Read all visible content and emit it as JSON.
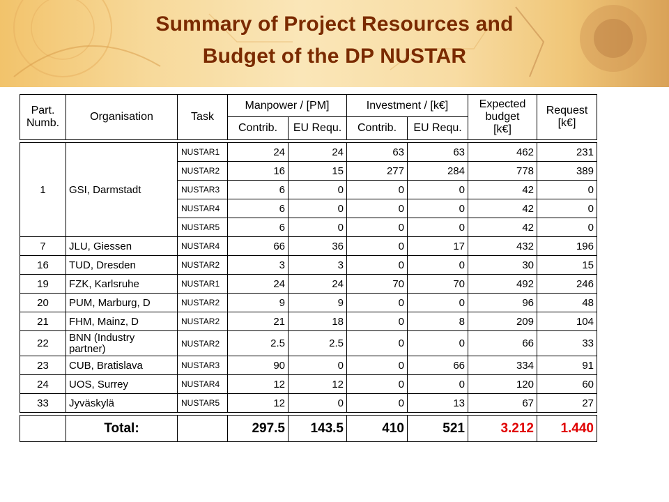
{
  "title": {
    "line1": "Summary of Project Resources and",
    "line2": "Budget of the DP NUSTAR"
  },
  "colors": {
    "title": "#7a2a00",
    "total_highlight": "#e00000",
    "banner": "#f7d99a"
  },
  "table": {
    "headers": {
      "part_numb": "Part.\nNumb.",
      "organisation": "Organisation",
      "task": "Task",
      "manpower": "Manpower / [PM]",
      "investment": "Investment / [k€]",
      "expected_budget": "Expected\nbudget\n[k€]",
      "request": "Request\n[k€]",
      "contrib": "Contrib.",
      "eu_requ": "EU Requ."
    },
    "gsi": {
      "part": "1",
      "org": "GSI, Darmstadt",
      "rows": [
        {
          "task": "NUSTAR1",
          "mp_contrib": "24",
          "mp_eu": "24",
          "inv_contrib": "63",
          "inv_eu": "63",
          "budget": "462",
          "request": "231"
        },
        {
          "task": "NUSTAR2",
          "mp_contrib": "16",
          "mp_eu": "15",
          "inv_contrib": "277",
          "inv_eu": "284",
          "budget": "778",
          "request": "389"
        },
        {
          "task": "NUSTAR3",
          "mp_contrib": "6",
          "mp_eu": "0",
          "inv_contrib": "0",
          "inv_eu": "0",
          "budget": "42",
          "request": "0"
        },
        {
          "task": "NUSTAR4",
          "mp_contrib": "6",
          "mp_eu": "0",
          "inv_contrib": "0",
          "inv_eu": "0",
          "budget": "42",
          "request": "0"
        },
        {
          "task": "NUSTAR5",
          "mp_contrib": "6",
          "mp_eu": "0",
          "inv_contrib": "0",
          "inv_eu": "0",
          "budget": "42",
          "request": "0"
        }
      ]
    },
    "rows": [
      {
        "part": "7",
        "org": "JLU, Giessen",
        "task": "NUSTAR4",
        "mp_contrib": "66",
        "mp_eu": "36",
        "inv_contrib": "0",
        "inv_eu": "17",
        "budget": "432",
        "request": "196"
      },
      {
        "part": "16",
        "org": "TUD, Dresden",
        "task": "NUSTAR2",
        "mp_contrib": "3",
        "mp_eu": "3",
        "inv_contrib": "0",
        "inv_eu": "0",
        "budget": "30",
        "request": "15"
      },
      {
        "part": "19",
        "org": "FZK, Karlsruhe",
        "task": "NUSTAR1",
        "mp_contrib": "24",
        "mp_eu": "24",
        "inv_contrib": "70",
        "inv_eu": "70",
        "budget": "492",
        "request": "246"
      },
      {
        "part": "20",
        "org": "PUM, Marburg, D",
        "task": "NUSTAR2",
        "mp_contrib": "9",
        "mp_eu": "9",
        "inv_contrib": "0",
        "inv_eu": "0",
        "budget": "96",
        "request": "48"
      },
      {
        "part": "21",
        "org": "FHM, Mainz, D",
        "task": "NUSTAR2",
        "mp_contrib": "21",
        "mp_eu": "18",
        "inv_contrib": "0",
        "inv_eu": "8",
        "budget": "209",
        "request": "104"
      },
      {
        "part": "22",
        "org": "BNN (Industry\npartner)",
        "task": "NUSTAR2",
        "mp_contrib": "2.5",
        "mp_eu": "2.5",
        "inv_contrib": "0",
        "inv_eu": "0",
        "budget": "66",
        "request": "33"
      },
      {
        "part": "23",
        "org": "CUB, Bratislava",
        "task": "NUSTAR3",
        "mp_contrib": "90",
        "mp_eu": "0",
        "inv_contrib": "0",
        "inv_eu": "66",
        "budget": "334",
        "request": "91"
      },
      {
        "part": "24",
        "org": "UOS, Surrey",
        "task": "NUSTAR4",
        "mp_contrib": "12",
        "mp_eu": "12",
        "inv_contrib": "0",
        "inv_eu": "0",
        "budget": "120",
        "request": "60"
      },
      {
        "part": "33",
        "org": "Jyväskylä",
        "task": "NUSTAR5",
        "mp_contrib": "12",
        "mp_eu": "0",
        "inv_contrib": "0",
        "inv_eu": "13",
        "budget": "67",
        "request": "27"
      }
    ],
    "total": {
      "label": "Total:",
      "mp_contrib": "297.5",
      "mp_eu": "143.5",
      "inv_contrib": "410",
      "inv_eu": "521",
      "budget": "3.212",
      "request": "1.440"
    }
  }
}
